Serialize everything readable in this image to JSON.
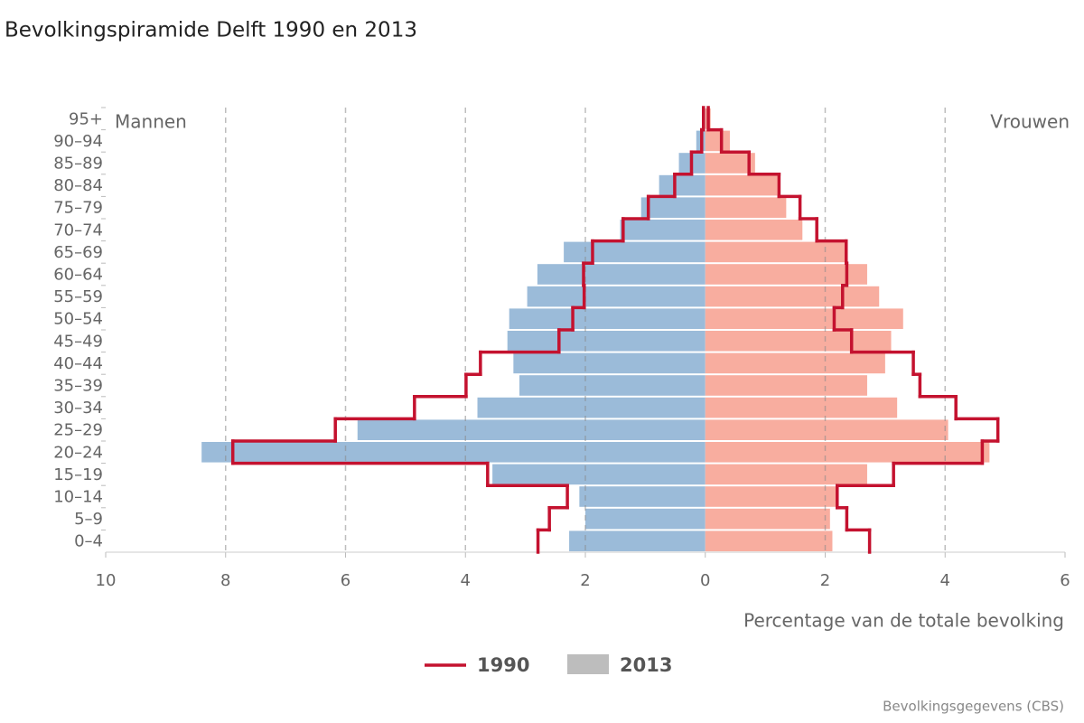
{
  "chart_data": {
    "type": "population-pyramid",
    "title": "Bevolkingspiramide Delft 1990 en 2013",
    "x_label": "Percentage van de totale bevolking",
    "source": "Bevolkingsgegevens (CBS)",
    "sides": [
      "Mannen",
      "Vrouwen"
    ],
    "categories": [
      "0–4",
      "5–9",
      "10–14",
      "15–19",
      "20–24",
      "25–29",
      "30–34",
      "35–39",
      "40–44",
      "45–49",
      "50–54",
      "55–59",
      "60–64",
      "65–69",
      "70–74",
      "75–79",
      "80–84",
      "85–89",
      "90–94",
      "95+"
    ],
    "series": [
      {
        "name": "1990",
        "type": "step",
        "color": "#c4122f",
        "values": [
          [
            2.79,
            2.6,
            2.3,
            3.63,
            7.88,
            6.17,
            4.85,
            3.99,
            3.75,
            2.44,
            2.21,
            2.02,
            2.03,
            1.88,
            1.37,
            0.95,
            0.51,
            0.23,
            0.06,
            0.03
          ],
          [
            2.74,
            2.36,
            2.2,
            3.14,
            4.62,
            4.88,
            4.18,
            3.58,
            3.47,
            2.44,
            2.15,
            2.29,
            2.36,
            2.35,
            1.86,
            1.58,
            1.23,
            0.73,
            0.27,
            0.05
          ]
        ]
      },
      {
        "name": "2013",
        "type": "bar",
        "color": "#bdbdbd",
        "side_colors": [
          "#9bbbd9",
          "#f8ad9f"
        ],
        "values": [
          [
            2.27,
            2.0,
            2.1,
            3.55,
            8.4,
            5.8,
            3.8,
            3.1,
            3.2,
            3.3,
            3.27,
            2.97,
            2.8,
            2.36,
            1.42,
            1.07,
            0.77,
            0.44,
            0.15,
            0.03
          ],
          [
            2.12,
            2.08,
            2.18,
            2.7,
            4.74,
            4.05,
            3.2,
            2.7,
            3.0,
            3.1,
            3.3,
            2.9,
            2.7,
            2.35,
            1.62,
            1.35,
            1.23,
            0.83,
            0.41,
            0.09
          ]
        ]
      }
    ],
    "xlim": [
      -10,
      6
    ],
    "xticks": [
      {
        "value": -10,
        "label": "10"
      },
      {
        "value": -8,
        "label": "8"
      },
      {
        "value": -6,
        "label": "6"
      },
      {
        "value": -4,
        "label": "4"
      },
      {
        "value": -2,
        "label": "2"
      },
      0,
      2,
      4,
      6
    ],
    "grid": true
  }
}
